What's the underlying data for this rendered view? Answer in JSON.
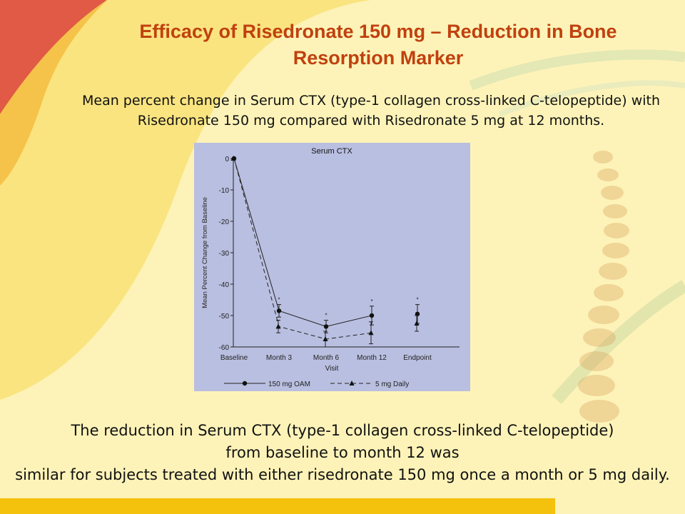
{
  "slide": {
    "title_line1": "Efficacy of Risedronate 150 mg – Reduction in Bone",
    "title_line2": "Resorption Marker",
    "subtitle_line1": "Mean percent change in Serum CTX (type-1 collagen cross-linked C-telopeptide) with",
    "subtitle_line2": "Risedronate 150 mg compared with Risedronate 5 mg at 12 months.",
    "conclusion_line1": "The reduction in Serum CTX (type-1 collagen cross-linked C-telopeptide)",
    "conclusion_line2": "from baseline to month 12 was",
    "conclusion_line3": "similar for subjects treated with either risedronate 150 mg once a month or 5 mg daily.",
    "colors": {
      "title": "#c0410f",
      "panel": "#b9bfe0",
      "accent_bar": "#f4c20d"
    }
  },
  "chart_data": {
    "type": "line",
    "title": "Serum CTX",
    "xlabel": "Visit",
    "ylabel": "Mean Percent Change from Baseline",
    "categories": [
      "Baseline",
      "Month 3",
      "Month 6",
      "Month 12",
      "Endpoint"
    ],
    "ylim": [
      -60,
      0
    ],
    "yticks": [
      0,
      -10,
      -20,
      -30,
      -40,
      -50,
      -60
    ],
    "grid": false,
    "legend_position": "bottom",
    "series": [
      {
        "name": "150 mg OAM",
        "marker": "circle",
        "line": "solid",
        "values": [
          0,
          -48.5,
          -53.5,
          -50,
          -49.5
        ],
        "err": [
          0,
          2,
          2,
          3,
          3
        ],
        "significance": [
          false,
          true,
          true,
          true,
          true
        ]
      },
      {
        "name": "5 mg Daily",
        "marker": "triangle",
        "line": "dashed",
        "values": [
          0,
          -53.5,
          -57.5,
          -55.5,
          -52.5
        ],
        "err": [
          0,
          2,
          2.5,
          3.5,
          2.5
        ]
      }
    ]
  }
}
